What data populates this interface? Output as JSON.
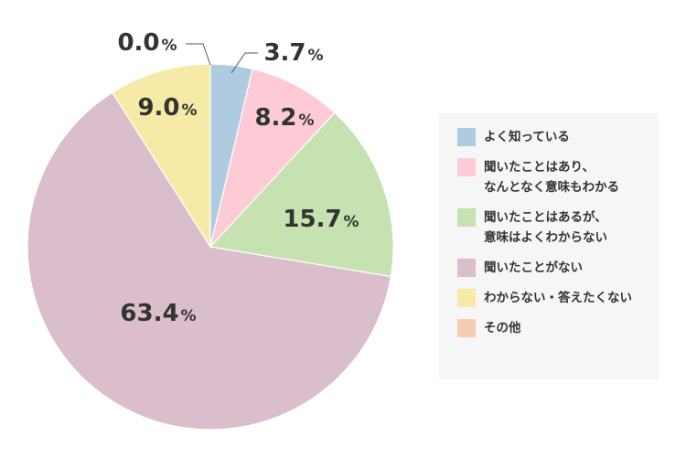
{
  "chart_data": {
    "type": "pie",
    "slices": [
      {
        "label": "よく知っている",
        "value": 3.7,
        "display": "3.7",
        "color": "#aecbe2"
      },
      {
        "label": "聞いたことはあり、\nなんとなく意味もわかる",
        "value": 8.2,
        "display": "8.2",
        "color": "#fccbd6"
      },
      {
        "label": "聞いたことはあるが、\n意味はよくわからない",
        "value": 15.7,
        "display": "15.7",
        "color": "#c5e2b0"
      },
      {
        "label": "聞いたことがない",
        "value": 63.4,
        "display": "63.4",
        "color": "#dbbecc"
      },
      {
        "label": "わからない・答えたくない",
        "value": 9.0,
        "display": "9.0",
        "color": "#f5eba6"
      },
      {
        "label": "その他",
        "value": 0.0,
        "display": "0.0",
        "color": "#f5cdb3"
      }
    ],
    "unit": "%",
    "legend_position": "right"
  }
}
